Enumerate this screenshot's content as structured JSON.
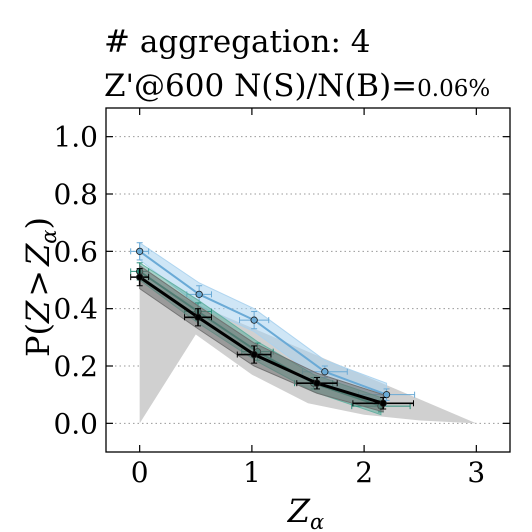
{
  "chart_data": {
    "type": "line",
    "title_line1": "# aggregation: 4",
    "title_line2_main": "Z'@600 N(S)/N(B)=",
    "title_line2_small": "0.06%",
    "ylabel": "P(Z > Z_α)",
    "xlabel": "Z_α",
    "xlim": [
      -0.3,
      3.3
    ],
    "ylim": [
      -0.1,
      1.1
    ],
    "xticks": [
      0,
      1,
      2,
      3
    ],
    "xtick_labels": [
      "0",
      "1",
      "2",
      "3"
    ],
    "yticks": [
      0.0,
      0.2,
      0.4,
      0.6,
      0.8,
      1.0
    ],
    "ytick_labels": [
      "0.0",
      "0.2",
      "0.4",
      "0.6",
      "0.8",
      "1.0"
    ],
    "grid": "horizontal-dotted",
    "colors": {
      "blue": "#6aaad6",
      "blue_band": "#a8d2ee",
      "green": "#2e8f7b",
      "green_band": "#5fae9e",
      "black": "#000000",
      "black_band": "#6e6e6e",
      "gray_fill": "#d0d0d0"
    },
    "background_fill": {
      "x": [
        0.0,
        0.0,
        0.5,
        1.0,
        1.5,
        2.0,
        2.5,
        3.0
      ],
      "y": [
        0.5,
        0.0,
        0.31,
        0.17,
        0.07,
        0.03,
        0.01,
        0.0
      ]
    },
    "series": [
      {
        "color": "blue",
        "points": [
          {
            "x": 0.0,
            "y": 0.6,
            "xerr": 0.08,
            "yerr": 0.03,
            "band": 0.03
          },
          {
            "x": 0.53,
            "y": 0.45,
            "xerr": 0.11,
            "yerr": 0.03,
            "band": 0.04
          },
          {
            "x": 1.02,
            "y": 0.36,
            "xerr": 0.13,
            "yerr": 0.03,
            "band": 0.04
          },
          {
            "x": 1.65,
            "y": 0.18,
            "xerr": 0.2,
            "yerr": 0.02,
            "band": 0.04
          },
          {
            "x": 2.2,
            "y": 0.1,
            "xerr": 0.25,
            "yerr": 0.02,
            "band": 0.04
          }
        ]
      },
      {
        "color": "green",
        "points": [
          {
            "x": 0.0,
            "y": 0.53,
            "xerr": 0.08,
            "yerr": 0.03,
            "band": 0.03
          },
          {
            "x": 0.52,
            "y": 0.39,
            "xerr": 0.12,
            "yerr": 0.03,
            "band": 0.04
          },
          {
            "x": 1.05,
            "y": 0.25,
            "xerr": 0.14,
            "yerr": 0.03,
            "band": 0.035
          },
          {
            "x": 1.55,
            "y": 0.14,
            "xerr": 0.17,
            "yerr": 0.02,
            "band": 0.03
          },
          {
            "x": 2.15,
            "y": 0.06,
            "xerr": 0.26,
            "yerr": 0.02,
            "band": 0.03
          }
        ]
      },
      {
        "color": "black",
        "points": [
          {
            "x": 0.0,
            "y": 0.51,
            "xerr": 0.08,
            "yerr": 0.03,
            "band": 0.04
          },
          {
            "x": 0.52,
            "y": 0.37,
            "xerr": 0.12,
            "yerr": 0.03,
            "band": 0.04
          },
          {
            "x": 1.02,
            "y": 0.24,
            "xerr": 0.15,
            "yerr": 0.03,
            "band": 0.04
          },
          {
            "x": 1.58,
            "y": 0.14,
            "xerr": 0.18,
            "yerr": 0.02,
            "band": 0.035
          },
          {
            "x": 2.17,
            "y": 0.07,
            "xerr": 0.27,
            "yerr": 0.02,
            "band": 0.03
          }
        ]
      }
    ]
  }
}
